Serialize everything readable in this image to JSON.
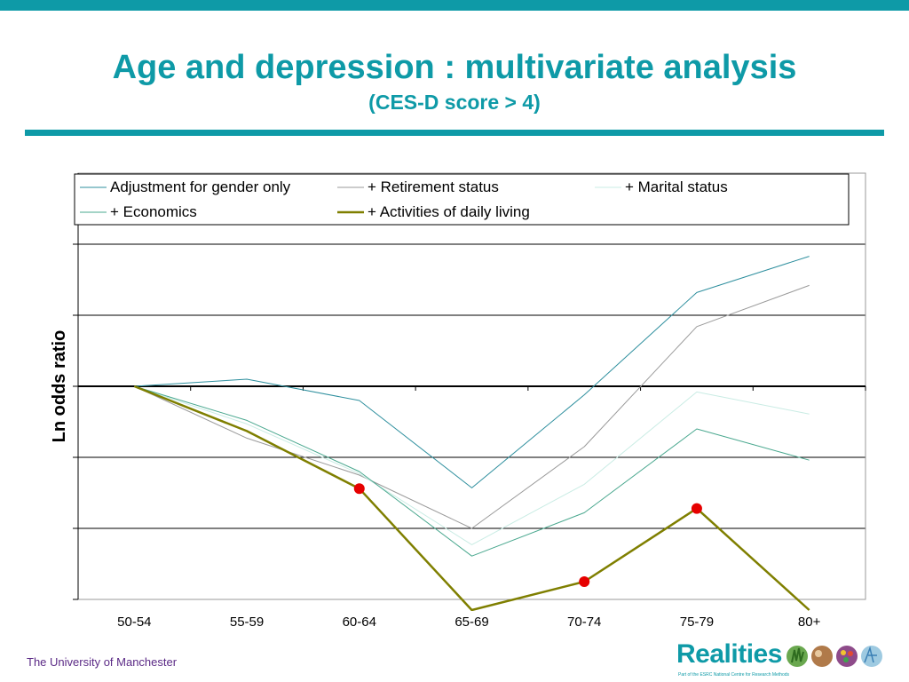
{
  "header": {
    "title": "Age and depression : multivariate analysis",
    "subtitle": "(CES-D score > 4)"
  },
  "footer": {
    "institution": "The University of Manchester",
    "logo_text": "Realities",
    "logo_tagline": "Part of the ESRC National Centre for Research Methods"
  },
  "colors": {
    "accent": "#0e9aa7",
    "institution_text": "#5b2a86",
    "marker": "#e60000"
  },
  "chart_data": {
    "type": "line",
    "ylabel": "Ln odds ratio",
    "xlabel": "",
    "grid": true,
    "legend_position": "top",
    "categories": [
      "50-54",
      "55-59",
      "60-64",
      "65-69",
      "70-74",
      "75-79",
      "80+"
    ],
    "ylim": [
      -3,
      2
    ],
    "series": [
      {
        "name": "Adjustment for gender only",
        "color": "#2e8f9e",
        "width": 1,
        "values": [
          0,
          0.1,
          -0.2,
          -1.43,
          -0.12,
          1.32,
          1.83
        ]
      },
      {
        "name": "+ Retirement status",
        "color": "#9a9a9a",
        "width": 1,
        "values": [
          0,
          -0.73,
          -1.25,
          -2.0,
          -0.85,
          0.84,
          1.42
        ]
      },
      {
        "name": "+ Marital status",
        "color": "#c9ece4",
        "width": 1,
        "values": [
          0,
          -0.53,
          -1.23,
          -2.23,
          -1.38,
          -0.08,
          -0.39
        ]
      },
      {
        "name": "+ Economics",
        "color": "#4aa88f",
        "width": 1,
        "values": [
          0,
          -0.48,
          -1.2,
          -2.39,
          -1.78,
          -0.6,
          -1.04
        ]
      },
      {
        "name": "+ Activities of daily living",
        "color": "#7f7f00",
        "width": 2.5,
        "values": [
          0,
          -0.63,
          -1.44,
          -3.15,
          -2.75,
          -1.72,
          -3.15
        ]
      }
    ],
    "significant_markers": [
      {
        "series": "+ Activities of daily living",
        "category": "60-64",
        "value": -1.44
      },
      {
        "series": "+ Activities of daily living",
        "category": "70-74",
        "value": -2.75
      },
      {
        "series": "+ Activities of daily living",
        "category": "75-79",
        "value": -1.72
      }
    ]
  }
}
